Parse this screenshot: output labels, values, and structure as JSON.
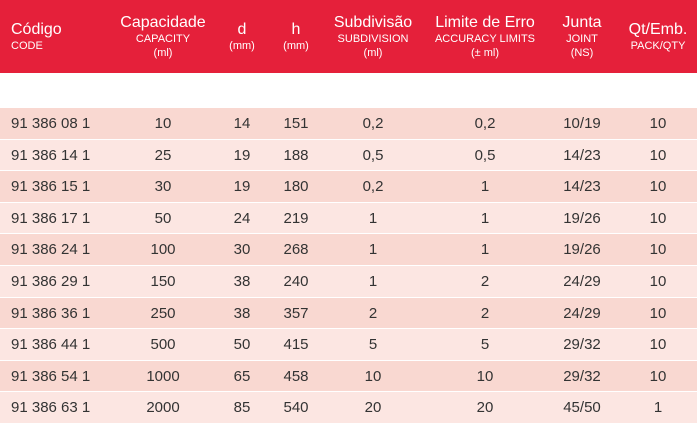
{
  "header": {
    "code": {
      "main": "Código",
      "sub": "CODE"
    },
    "capacity": {
      "main": "Capacidade",
      "sub": "CAPACITY",
      "unit": "(ml)"
    },
    "d": {
      "main": "d",
      "unit": "(mm)"
    },
    "h": {
      "main": "h",
      "unit": "(mm)"
    },
    "subdivision": {
      "main": "Subdivisão",
      "sub": "SUBDIVISION",
      "unit": "(ml)"
    },
    "accuracy": {
      "main": "Limite de Erro",
      "sub": "ACCURACY LIMITS",
      "unit": "(± ml)"
    },
    "joint": {
      "main": "Junta",
      "sub": "JOINT",
      "unit": "(NS)"
    },
    "pack": {
      "main": "Qt/Emb.",
      "sub": "PACK/QTY"
    }
  },
  "rows": [
    {
      "code": "91 386 08 1",
      "capacity": "10",
      "d": "14",
      "h": "151",
      "subdivision": "0,2",
      "accuracy": "0,2",
      "joint": "10/19",
      "pack": "10"
    },
    {
      "code": "91 386 14 1",
      "capacity": "25",
      "d": "19",
      "h": "188",
      "subdivision": "0,5",
      "accuracy": "0,5",
      "joint": "14/23",
      "pack": "10"
    },
    {
      "code": "91 386 15 1",
      "capacity": "30",
      "d": "19",
      "h": "180",
      "subdivision": "0,2",
      "accuracy": "1",
      "joint": "14/23",
      "pack": "10"
    },
    {
      "code": "91 386 17 1",
      "capacity": "50",
      "d": "24",
      "h": "219",
      "subdivision": "1",
      "accuracy": "1",
      "joint": "19/26",
      "pack": "10"
    },
    {
      "code": "91 386 24 1",
      "capacity": "100",
      "d": "30",
      "h": "268",
      "subdivision": "1",
      "accuracy": "1",
      "joint": "19/26",
      "pack": "10"
    },
    {
      "code": "91 386 29 1",
      "capacity": "150",
      "d": "38",
      "h": "240",
      "subdivision": "1",
      "accuracy": "2",
      "joint": "24/29",
      "pack": "10"
    },
    {
      "code": "91 386 36 1",
      "capacity": "250",
      "d": "38",
      "h": "357",
      "subdivision": "2",
      "accuracy": "2",
      "joint": "24/29",
      "pack": "10"
    },
    {
      "code": "91 386 44 1",
      "capacity": "500",
      "d": "50",
      "h": "415",
      "subdivision": "5",
      "accuracy": "5",
      "joint": "29/32",
      "pack": "10"
    },
    {
      "code": "91 386 54 1",
      "capacity": "1000",
      "d": "65",
      "h": "458",
      "subdivision": "10",
      "accuracy": "10",
      "joint": "29/32",
      "pack": "10"
    },
    {
      "code": "91 386 63 1",
      "capacity": "2000",
      "d": "85",
      "h": "540",
      "subdivision": "20",
      "accuracy": "20",
      "joint": "45/50",
      "pack": "1"
    }
  ]
}
